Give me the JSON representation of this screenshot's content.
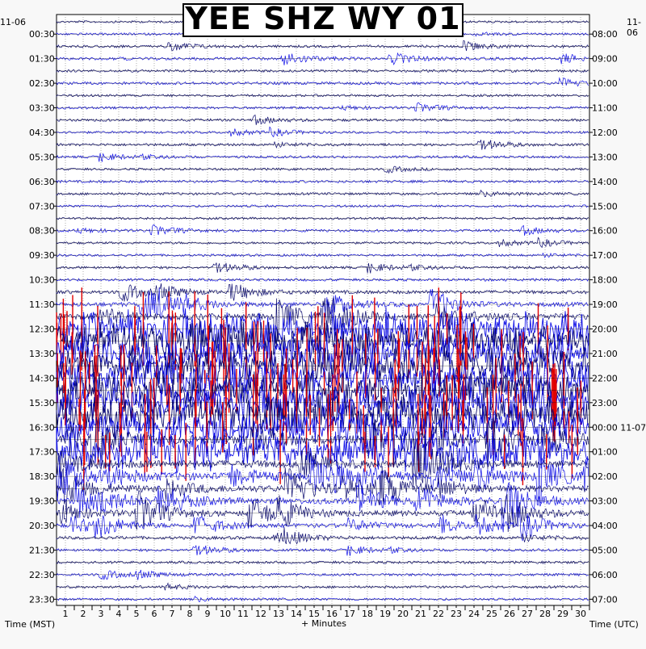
{
  "chart_data": {
    "type": "line",
    "title": "YEE SHZ WY 01",
    "xlabel": "+ Minutes",
    "ylabel_left": "Time (MST)",
    "ylabel_right": "Time (UTC)",
    "date_left": "11-06",
    "date_right": "11-06",
    "date_right_next": "11-07",
    "x_ticks": [
      "1",
      "2",
      "3",
      "4",
      "5",
      "6",
      "7",
      "8",
      "9",
      "10",
      "11",
      "12",
      "13",
      "14",
      "15",
      "16",
      "17",
      "18",
      "19",
      "20",
      "21",
      "22",
      "23",
      "24",
      "25",
      "26",
      "27",
      "28",
      "29",
      "30"
    ],
    "xlim": [
      0,
      30
    ],
    "left_time_labels": [
      "00:30",
      "01:30",
      "02:30",
      "03:30",
      "04:30",
      "05:30",
      "06:30",
      "07:30",
      "08:30",
      "09:30",
      "10:30",
      "11:30",
      "12:30",
      "13:30",
      "14:30",
      "15:30",
      "16:30",
      "17:30",
      "18:30",
      "19:30",
      "20:30",
      "21:30",
      "22:30",
      "23:30"
    ],
    "right_time_labels": [
      "08:00",
      "09:00",
      "10:00",
      "11:00",
      "12:00",
      "13:00",
      "14:00",
      "15:00",
      "16:00",
      "17:00",
      "18:00",
      "19:00",
      "20:00",
      "21:00",
      "22:00",
      "23:00",
      "00:00",
      "01:00",
      "02:00",
      "03:00",
      "04:00",
      "05:00",
      "06:00",
      "07:00"
    ],
    "trace_count": 48,
    "trace_colors": [
      "#0a0a6e",
      "#1010e6",
      "#2222ff",
      "#e00000"
    ],
    "trace_activity": [
      0.15,
      0.2,
      0.3,
      0.4,
      0.25,
      0.35,
      0.2,
      0.25,
      0.3,
      0.2,
      0.3,
      0.25,
      0.2,
      0.3,
      0.25,
      0.2,
      0.2,
      0.3,
      0.2,
      0.2,
      0.3,
      0.3,
      0.6,
      0.9,
      1.5,
      2.5,
      3.0,
      3.0,
      3.0,
      3.0,
      3.0,
      3.0,
      3.0,
      3.0,
      2.2,
      2.5,
      2.0,
      2.0,
      1.6,
      1.5,
      1.3,
      0.8,
      0.5,
      0.3,
      0.3,
      0.3,
      0.25,
      0.2
    ],
    "grid": true
  }
}
